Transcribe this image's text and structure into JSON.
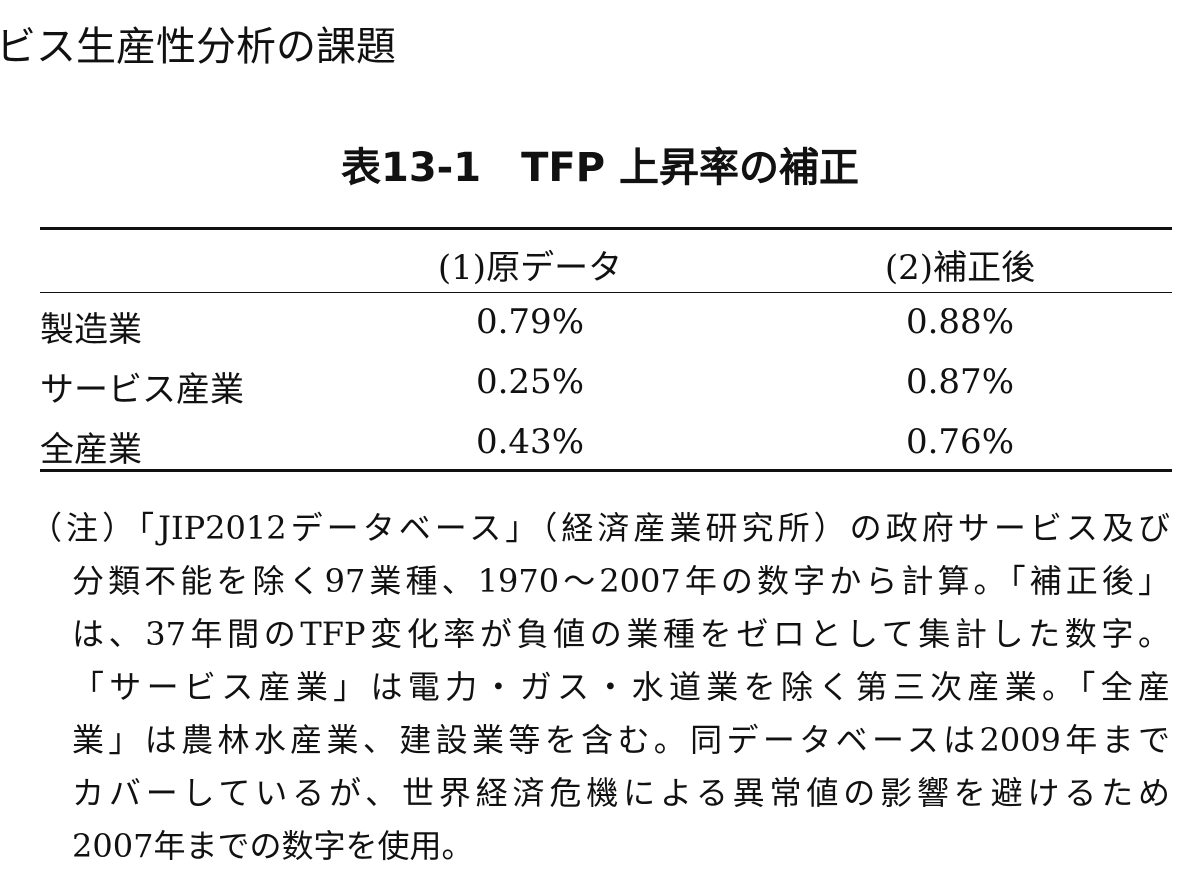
{
  "header": {
    "title": "ビス生産性分析の課題"
  },
  "table": {
    "title": "表13-1　TFP 上昇率の補正",
    "columns": [
      "(1)原データ",
      "(2)補正後"
    ],
    "rows": [
      [
        "製造業",
        "0.79%",
        "0.88%"
      ],
      [
        "サービス産業",
        "0.25%",
        "0.87%"
      ],
      [
        "全産業",
        "0.43%",
        "0.76%"
      ]
    ]
  },
  "note": {
    "lines": [
      "（注）「JIP2012データベース」（経済産業研究所）の政府サービス及び",
      "分類不能を除く97業種、1970〜2007年の数字から計算。「補正後」",
      "は、37年間のTFP変化率が負値の業種をゼロとして集計した数字。",
      "「サービス産業」は電力・ガス・水道業を除く第三次産業。「全産",
      "業」は農林水産業、建設業等を含む。同データベースは2009年まで",
      "カバーしているが、世界経済危機による異常値の影響を避けるため",
      "2007年までの数字を使用。"
    ]
  }
}
